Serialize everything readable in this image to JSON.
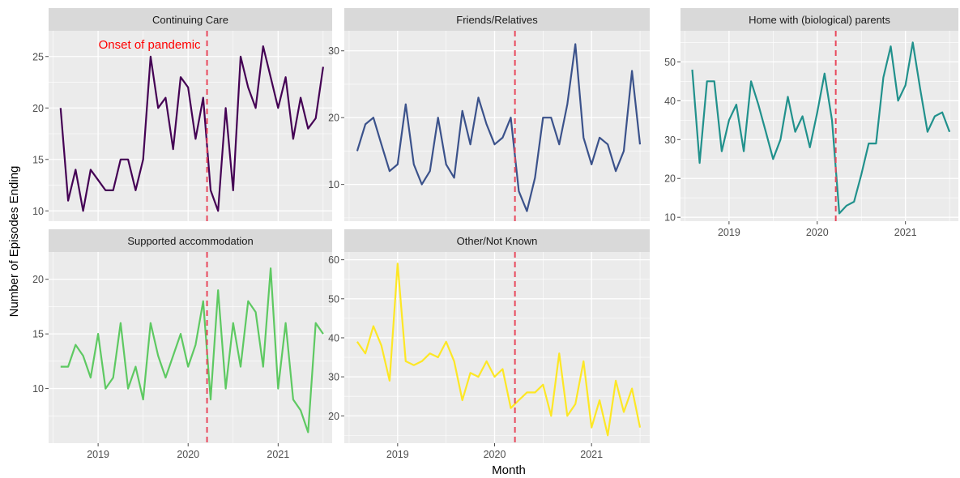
{
  "chart_data": {
    "type": "line",
    "xlabel": "Month",
    "ylabel": "Number of Episodes Ending",
    "annotation": {
      "text": "Onset of pandemic",
      "color": "#ff0000"
    },
    "vline": {
      "x": 2020.21,
      "color": "#e8485c"
    },
    "xlim": [
      2018.45,
      2021.6
    ],
    "xticks": [
      "2019",
      "2020",
      "2021"
    ],
    "panel_background": "#ebebeb",
    "strip_background": "#d9d9d9",
    "grid": true,
    "panels": [
      {
        "name": "Continuing Care",
        "color": "#440154",
        "ylim": [
          9,
          27.5
        ],
        "yticks": [
          "10",
          "15",
          "20",
          "25"
        ],
        "x": [
          2018.583,
          2018.667,
          2018.75,
          2018.833,
          2018.917,
          2019.0,
          2019.083,
          2019.167,
          2019.25,
          2019.333,
          2019.417,
          2019.5,
          2019.583,
          2019.667,
          2019.75,
          2019.833,
          2019.917,
          2020.0,
          2020.083,
          2020.167,
          2020.25,
          2020.333,
          2020.417,
          2020.5,
          2020.583,
          2020.667,
          2020.75,
          2020.833,
          2020.917,
          2021.0,
          2021.083,
          2021.167,
          2021.25,
          2021.333,
          2021.417,
          2021.5
        ],
        "y": [
          20,
          11,
          14,
          10,
          14,
          13,
          12,
          12,
          15,
          15,
          12,
          15,
          25,
          20,
          21,
          16,
          23,
          22,
          17,
          21,
          12,
          10,
          20,
          12,
          25,
          22,
          20,
          26,
          23,
          20,
          23,
          17,
          21,
          18,
          19,
          24
        ]
      },
      {
        "name": "Friends/Relatives",
        "color": "#3b528b",
        "ylim": [
          4.5,
          33
        ],
        "yticks": [
          "10",
          "20",
          "30"
        ],
        "x": [
          2018.583,
          2018.667,
          2018.75,
          2018.833,
          2018.917,
          2019.0,
          2019.083,
          2019.167,
          2019.25,
          2019.333,
          2019.417,
          2019.5,
          2019.583,
          2019.667,
          2019.75,
          2019.833,
          2019.917,
          2020.0,
          2020.083,
          2020.167,
          2020.25,
          2020.333,
          2020.417,
          2020.5,
          2020.583,
          2020.667,
          2020.75,
          2020.833,
          2020.917,
          2021.0,
          2021.083,
          2021.167,
          2021.25,
          2021.333,
          2021.417,
          2021.5
        ],
        "y": [
          15,
          19,
          20,
          16,
          12,
          13,
          22,
          13,
          10,
          12,
          20,
          13,
          11,
          21,
          16,
          23,
          19,
          16,
          17,
          20,
          9,
          6,
          11,
          20,
          20,
          16,
          22,
          31,
          17,
          13,
          17,
          16,
          12,
          15,
          27,
          16
        ]
      },
      {
        "name": "Home with (biological) parents",
        "color": "#21918c",
        "ylim": [
          9,
          58
        ],
        "yticks": [
          "10",
          "20",
          "30",
          "40",
          "50"
        ],
        "x": [
          2018.583,
          2018.667,
          2018.75,
          2018.833,
          2018.917,
          2019.0,
          2019.083,
          2019.167,
          2019.25,
          2019.333,
          2019.417,
          2019.5,
          2019.583,
          2019.667,
          2019.75,
          2019.833,
          2019.917,
          2020.0,
          2020.083,
          2020.167,
          2020.25,
          2020.333,
          2020.417,
          2020.5,
          2020.583,
          2020.667,
          2020.75,
          2020.833,
          2020.917,
          2021.0,
          2021.083,
          2021.167,
          2021.25,
          2021.333,
          2021.417,
          2021.5
        ],
        "y": [
          48,
          24,
          45,
          45,
          27,
          35,
          39,
          27,
          45,
          39,
          32,
          25,
          30,
          41,
          32,
          36,
          28,
          37,
          47,
          35,
          11,
          13,
          14,
          21,
          29,
          29,
          46,
          54,
          40,
          44,
          55,
          43,
          32,
          36,
          37,
          32
        ]
      },
      {
        "name": "Supported accommodation",
        "color": "#5ec962",
        "ylim": [
          5,
          22.5
        ],
        "yticks": [
          "10",
          "15",
          "20"
        ],
        "x": [
          2018.583,
          2018.667,
          2018.75,
          2018.833,
          2018.917,
          2019.0,
          2019.083,
          2019.167,
          2019.25,
          2019.333,
          2019.417,
          2019.5,
          2019.583,
          2019.667,
          2019.75,
          2019.833,
          2019.917,
          2020.0,
          2020.083,
          2020.167,
          2020.25,
          2020.333,
          2020.417,
          2020.5,
          2020.583,
          2020.667,
          2020.75,
          2020.833,
          2020.917,
          2021.0,
          2021.083,
          2021.167,
          2021.25,
          2021.333,
          2021.417,
          2021.5
        ],
        "y": [
          12,
          12,
          14,
          13,
          11,
          15,
          10,
          11,
          16,
          10,
          12,
          9,
          16,
          13,
          11,
          13,
          15,
          12,
          14,
          18,
          9,
          19,
          10,
          16,
          12,
          18,
          17,
          12,
          21,
          10,
          16,
          9,
          8,
          6,
          16,
          15
        ]
      },
      {
        "name": "Other/Not Known",
        "color": "#fde725",
        "ylim": [
          13,
          62
        ],
        "yticks": [
          "20",
          "30",
          "40",
          "50",
          "60"
        ],
        "x": [
          2018.583,
          2018.667,
          2018.75,
          2018.833,
          2018.917,
          2019.0,
          2019.083,
          2019.167,
          2019.25,
          2019.333,
          2019.417,
          2019.5,
          2019.583,
          2019.667,
          2019.75,
          2019.833,
          2019.917,
          2020.0,
          2020.083,
          2020.167,
          2020.25,
          2020.333,
          2020.417,
          2020.5,
          2020.583,
          2020.667,
          2020.75,
          2020.833,
          2020.917,
          2021.0,
          2021.083,
          2021.167,
          2021.25,
          2021.333,
          2021.417,
          2021.5
        ],
        "y": [
          39,
          36,
          43,
          38,
          29,
          59,
          34,
          33,
          34,
          36,
          35,
          39,
          34,
          24,
          31,
          30,
          34,
          30,
          32,
          22,
          24,
          26,
          26,
          28,
          20,
          36,
          20,
          23,
          34,
          17,
          24,
          15,
          29,
          21,
          27,
          17
        ]
      }
    ]
  }
}
